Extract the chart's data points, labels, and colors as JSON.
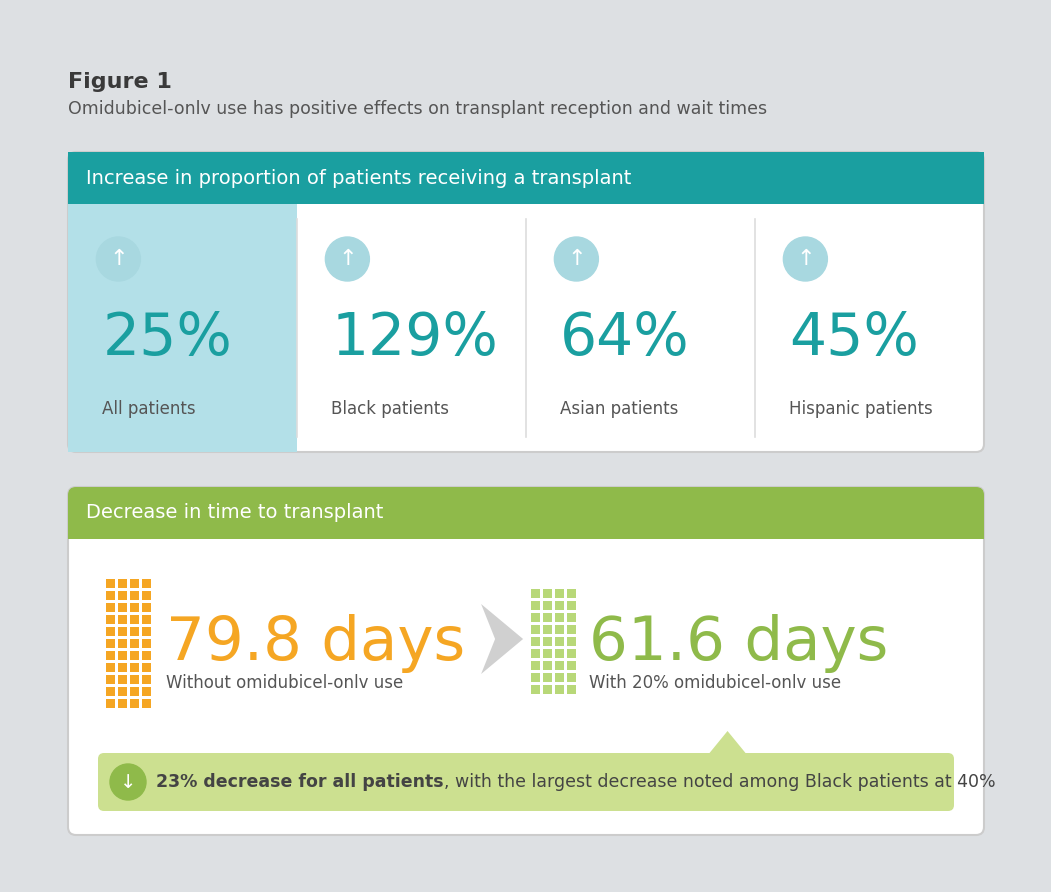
{
  "bg_color": "#dde0e3",
  "figure_title": "Figure 1",
  "figure_subtitle": "Omidubicel-onlv use has positive effects on transplant reception and wait times",
  "section1_header": "Increase in proportion of patients receiving a transplant",
  "section1_header_bg": "#1a9fa0",
  "section1_first_cell_bg": "#b3e0e8",
  "section1_items": [
    {
      "pct": "25%",
      "label": "All patients",
      "highlighted": true
    },
    {
      "pct": "129%",
      "label": "Black patients",
      "highlighted": false
    },
    {
      "pct": "64%",
      "label": "Asian patients",
      "highlighted": false
    },
    {
      "pct": "45%",
      "label": "Hispanic patients",
      "highlighted": false
    }
  ],
  "pct_color": "#1a9fa0",
  "arrow_circle_color": "#a8d8e0",
  "section2_header": "Decrease in time to transplant",
  "section2_header_bg": "#8fba4a",
  "days1_value": "79.8 days",
  "days1_label": "Without omidubicel-onlv use",
  "days1_color": "#f5a623",
  "days2_value": "61.6 days",
  "days2_label": "With 20% omidubicel-onlv use",
  "days2_color": "#8fba4a",
  "grid1_color": "#f5a623",
  "grid2_color": "#b8d878",
  "callout_bg": "#cce090",
  "callout_text_bold": "23% decrease for all patients",
  "callout_text_regular": ", with the largest decrease noted among Black patients at 40%",
  "callout_circle_color": "#8fba4a",
  "label_color": "#555555",
  "divider_color": "#dddddd",
  "white": "#ffffff"
}
